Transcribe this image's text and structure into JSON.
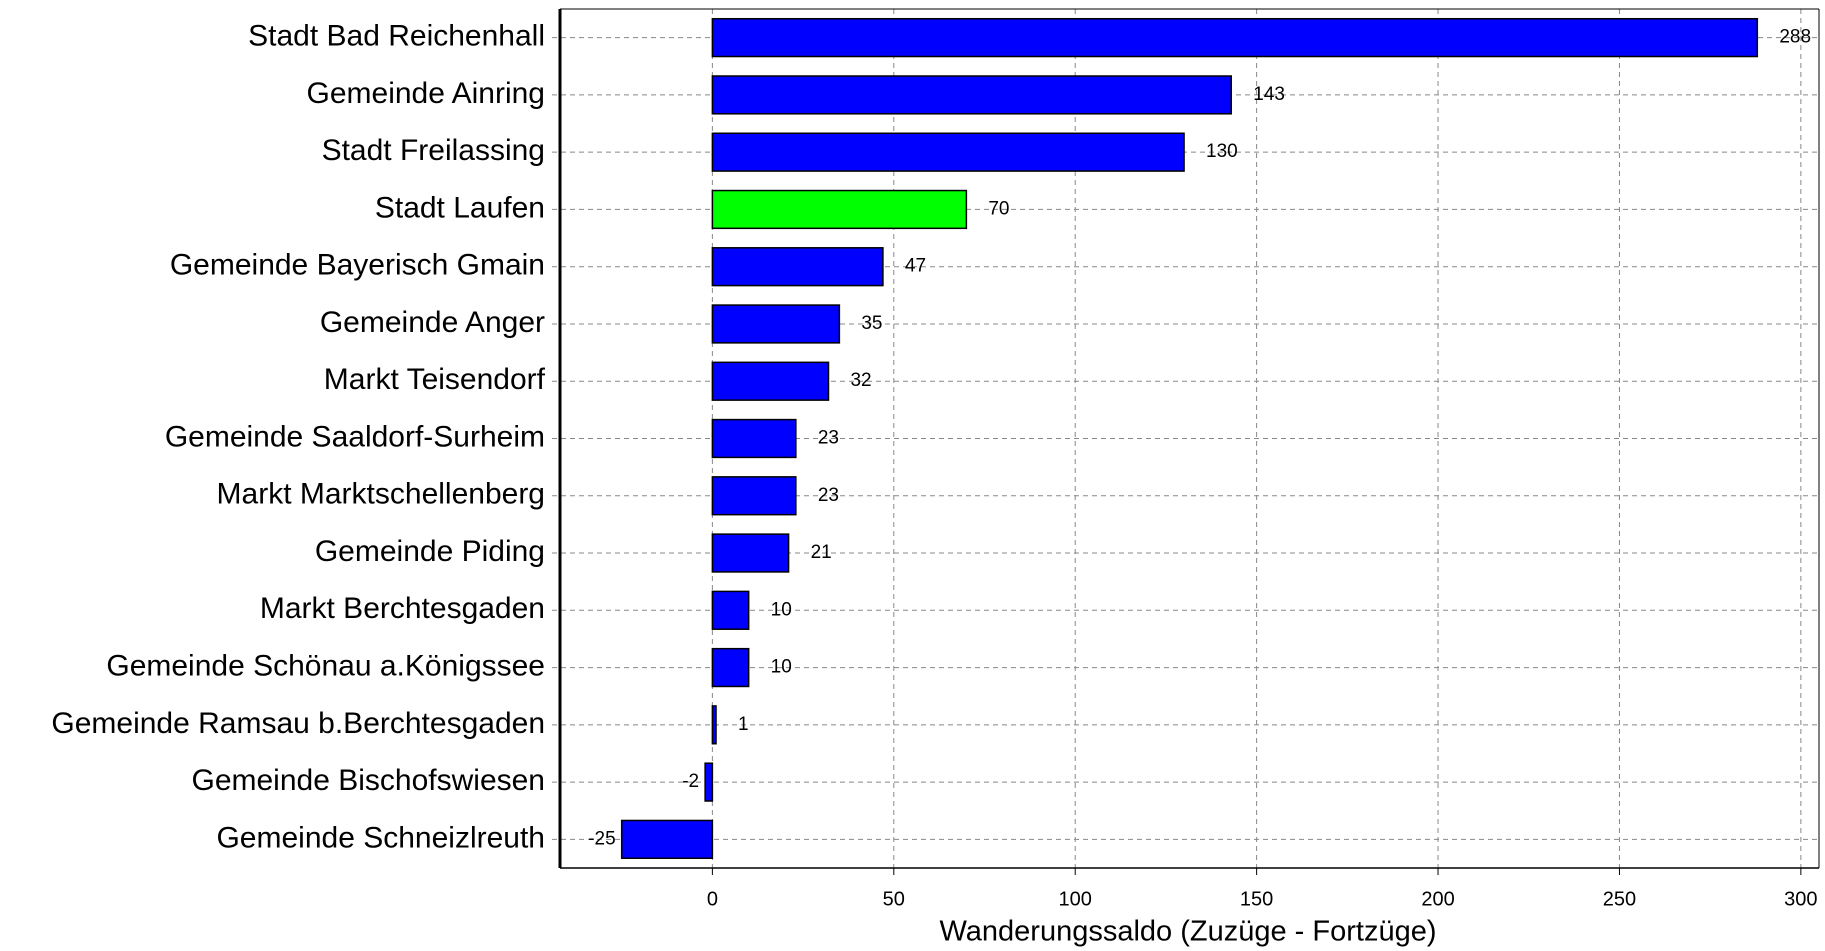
{
  "chart_data": {
    "type": "barh",
    "xlabel": "Wanderungssaldo (Zuzüge - Fortzüge)",
    "categories": [
      "Stadt Bad Reichenhall",
      "Gemeinde Ainring",
      "Stadt Freilassing",
      "Stadt Laufen",
      "Gemeinde Bayerisch Gmain",
      "Gemeinde Anger",
      "Markt Teisendorf",
      "Gemeinde Saaldorf-Surheim",
      "Markt Marktschellenberg",
      "Gemeinde Piding",
      "Markt Berchtesgaden",
      "Gemeinde Schönau a.Königssee",
      "Gemeinde Ramsau b.Berchtesgaden",
      "Gemeinde Bischofswiesen",
      "Gemeinde Schneizlreuth"
    ],
    "values": [
      288,
      143,
      130,
      70,
      47,
      35,
      32,
      23,
      23,
      21,
      10,
      10,
      1,
      -2,
      -25
    ],
    "colors": [
      "#0000ff",
      "#0000ff",
      "#0000ff",
      "#00ff00",
      "#0000ff",
      "#0000ff",
      "#0000ff",
      "#0000ff",
      "#0000ff",
      "#0000ff",
      "#0000ff",
      "#0000ff",
      "#0000ff",
      "#0000ff",
      "#0000ff"
    ],
    "xlim": [
      -42,
      305
    ],
    "xticks": [
      0,
      50,
      100,
      150,
      200,
      250,
      300
    ],
    "grid": true
  }
}
